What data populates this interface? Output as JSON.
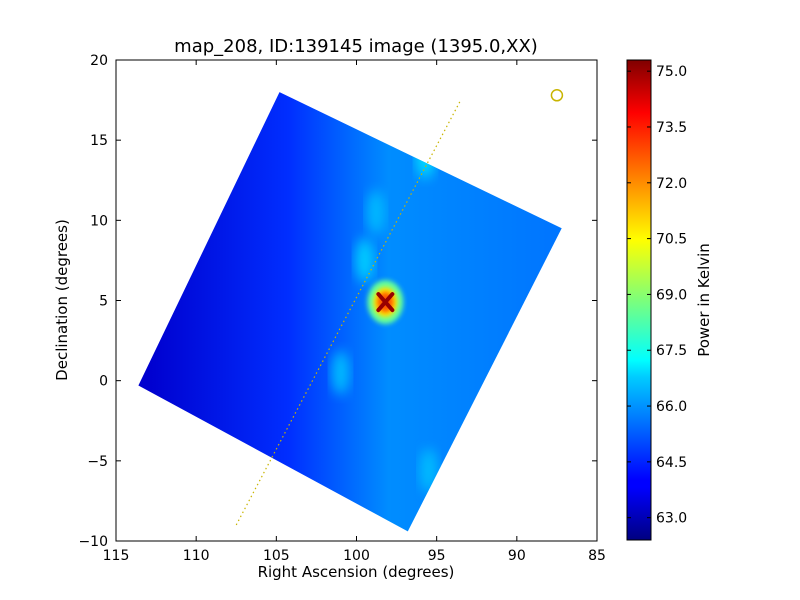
{
  "chart_data": {
    "type": "heatmap",
    "title": "map_208, ID:139145 image (1395.0,XX)",
    "xlabel": "Right Ascension (degrees)",
    "ylabel": "Declination (degrees)",
    "xlim": [
      115,
      85
    ],
    "ylim": [
      -10,
      20
    ],
    "xticks": [
      115,
      110,
      105,
      100,
      95,
      90,
      85
    ],
    "yticks": [
      -10,
      -5,
      0,
      5,
      10,
      15,
      20
    ],
    "colorbar": {
      "label": "Power in Kelvin",
      "min": 62.4,
      "max": 75.3,
      "ticks": [
        "63.0",
        "64.5",
        "66.0",
        "67.5",
        "69.0",
        "70.5",
        "72.0",
        "73.5",
        "75.0"
      ],
      "colormap": "jet"
    },
    "map_region_corners": [
      {
        "ra": 104.8,
        "dec": 18.0
      },
      {
        "ra": 87.2,
        "dec": 9.5
      },
      {
        "ra": 96.8,
        "dec": -9.4
      },
      {
        "ra": 113.6,
        "dec": -0.3
      }
    ],
    "east_band_level": 63.4,
    "west_band_level": 65.8,
    "hotspot": {
      "ra": 98.2,
      "dec": 4.9,
      "value": 75.0
    },
    "secondary_sources": [
      {
        "ra": 99.5,
        "dec": 7.5,
        "value": 67.0
      },
      {
        "ra": 101.0,
        "dec": 0.5,
        "value": 66.8
      },
      {
        "ra": 98.8,
        "dec": 10.5,
        "value": 66.6
      },
      {
        "ra": 95.7,
        "dec": 14.0,
        "value": 67.2
      },
      {
        "ra": 95.5,
        "dec": -5.6,
        "value": 66.6
      }
    ],
    "dotted_line": [
      {
        "ra": 107.5,
        "dec": -9.0
      },
      {
        "ra": 93.5,
        "dec": 17.5
      }
    ],
    "marker_circle": {
      "ra": 87.5,
      "dec": 17.8
    },
    "colors": {
      "dotted_line": "#c8b400",
      "marker_circle": "#c8b400",
      "frame": "#000000"
    }
  }
}
